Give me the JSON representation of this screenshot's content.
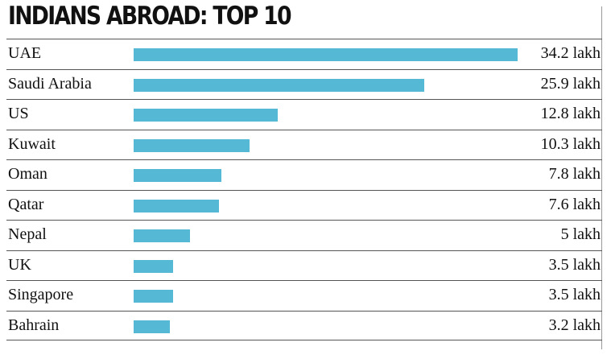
{
  "chart_data": {
    "type": "bar",
    "orientation": "horizontal",
    "title": "INDIANS ABROAD: TOP 10",
    "unit": "lakh",
    "categories": [
      "UAE",
      "Saudi Arabia",
      "US",
      "Kuwait",
      "Oman",
      "Qatar",
      "Nepal",
      "UK",
      "Singapore",
      "Bahrain"
    ],
    "values": [
      34.2,
      25.9,
      12.8,
      10.3,
      7.8,
      7.6,
      5,
      3.5,
      3.5,
      3.2
    ],
    "value_labels": [
      "34.2 lakh",
      "25.9 lakh",
      "12.8 lakh",
      "10.3 lakh",
      "7.8 lakh",
      "7.6 lakh",
      "5 lakh",
      "3.5 lakh",
      "3.5 lakh",
      "3.2 lakh"
    ],
    "xlim": [
      0,
      34.2
    ],
    "bar_color": "#55b9d6",
    "grid": false,
    "legend": false
  }
}
